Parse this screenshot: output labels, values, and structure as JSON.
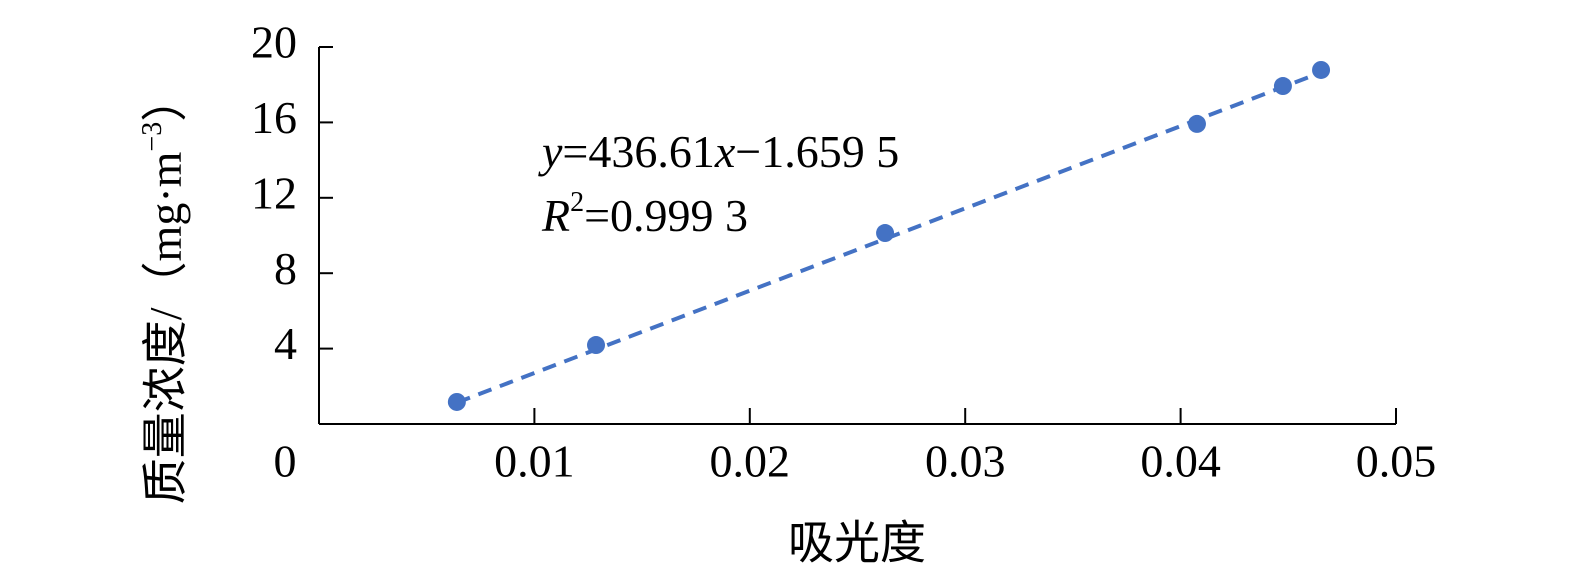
{
  "chart_data": {
    "type": "scatter",
    "x_label": "吸光度",
    "y_label": [
      {
        "text": "质量浓度/（mg·m"
      },
      {
        "text": "−3",
        "sup": true
      },
      {
        "text": "）"
      }
    ],
    "x": [
      0.0064,
      0.01286,
      0.02628,
      0.04076,
      0.04475,
      0.04652
    ],
    "series": [
      {
        "color": "#4472c4",
        "values": [
          1.17,
          4.19,
          10.13,
          15.92,
          17.93,
          18.78
        ]
      }
    ],
    "trendline": {
      "slope": 436.61,
      "intercept": -1.6595,
      "color": "#4472c4",
      "dashed": true
    },
    "annotations": [
      [
        {
          "text": "y",
          "italic": true
        },
        {
          "text": "=436.61"
        },
        {
          "text": "x",
          "italic": true
        },
        {
          "text": "−1.659 5"
        }
      ],
      [
        {
          "text": "R",
          "italic": true
        },
        {
          "text": "2",
          "sup": true
        },
        {
          "text": "=0.999 3"
        }
      ]
    ],
    "xlim": [
      0,
      0.05
    ],
    "ylim": [
      0,
      20
    ],
    "xticks": [
      0,
      0.01,
      0.02,
      0.03,
      0.04,
      0.05
    ],
    "yticks": [
      4,
      8,
      12,
      16,
      20
    ],
    "grid": false
  }
}
